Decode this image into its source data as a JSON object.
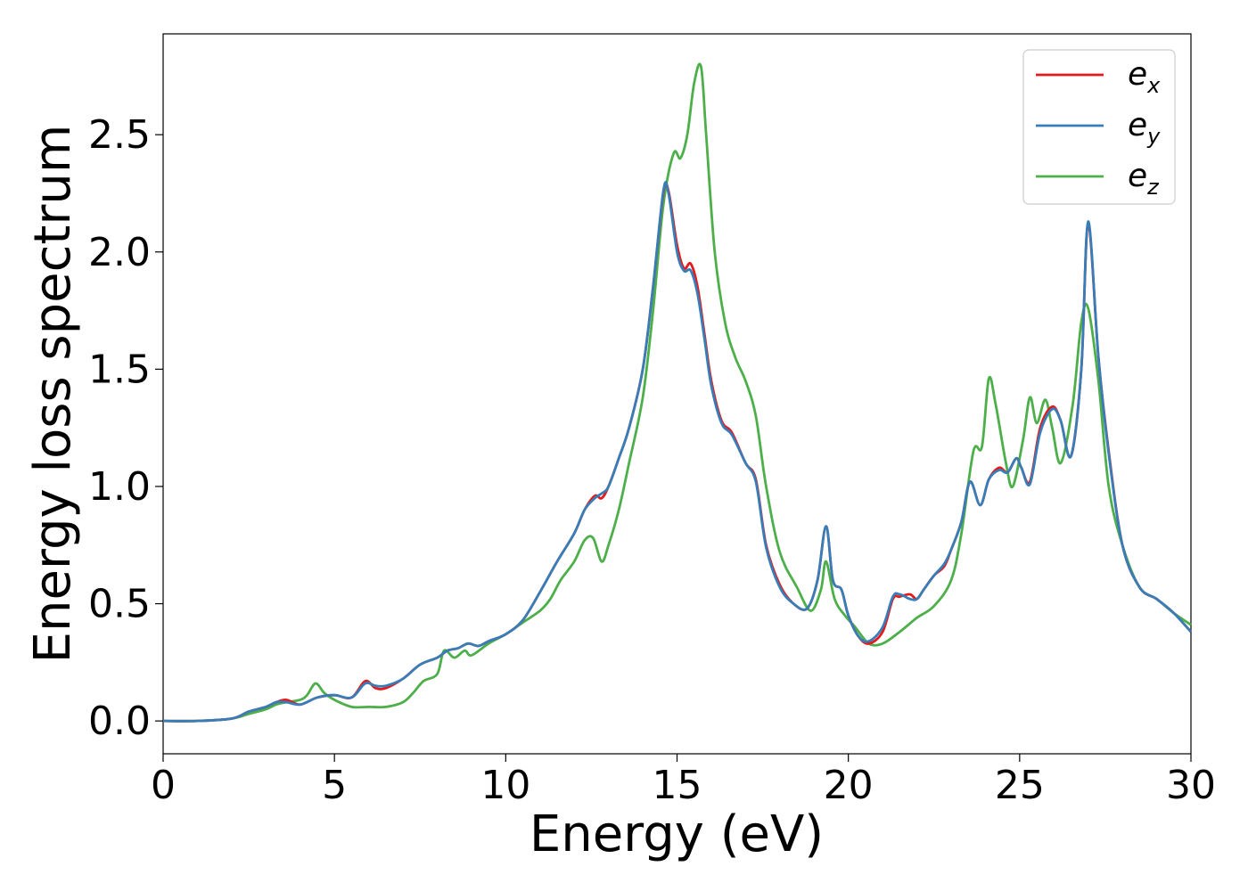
{
  "chart_data": {
    "type": "line",
    "xlabel": "Energy (eV)",
    "ylabel": "Energy loss spectrum",
    "xlim": [
      0,
      30
    ],
    "ylim": [
      -0.14,
      2.93
    ],
    "xticks": [
      0,
      5,
      10,
      15,
      20,
      25,
      30
    ],
    "xtick_labels": [
      "0",
      "5",
      "10",
      "15",
      "20",
      "25",
      "30"
    ],
    "yticks": [
      0.0,
      0.5,
      1.0,
      1.5,
      2.0,
      2.5
    ],
    "ytick_labels": [
      "0.0",
      "0.5",
      "1.0",
      "1.5",
      "2.0",
      "2.5"
    ],
    "grid": false,
    "legend_position": "top-right",
    "series": [
      {
        "name": "e",
        "subscript": "x",
        "color": "#e41a1c",
        "x": [
          0,
          1,
          2,
          2.5,
          3,
          3.3,
          3.6,
          4,
          4.5,
          5,
          5.5,
          5.9,
          6.2,
          6.5,
          7,
          7.5,
          8,
          8.3,
          8.6,
          8.9,
          9.2,
          9.5,
          10,
          10.5,
          11,
          11.5,
          12,
          12.3,
          12.6,
          12.8,
          13,
          13.3,
          13.6,
          14,
          14.3,
          14.6,
          14.75,
          15,
          15.2,
          15.4,
          15.6,
          15.8,
          16,
          16.3,
          16.6,
          17,
          17.3,
          17.6,
          18,
          18.4,
          18.8,
          19.1,
          19.35,
          19.55,
          19.8,
          20,
          20.3,
          20.6,
          21,
          21.3,
          21.5,
          21.8,
          22,
          22.2,
          22.5,
          22.8,
          23,
          23.3,
          23.55,
          23.85,
          24.1,
          24.4,
          24.65,
          24.9,
          25.05,
          25.3,
          25.6,
          25.95,
          26.2,
          26.5,
          26.8,
          27.0,
          27.3,
          27.6,
          28,
          28.5,
          29,
          29.5,
          30
        ],
        "y": [
          0.0,
          0.0,
          0.01,
          0.04,
          0.06,
          0.08,
          0.09,
          0.07,
          0.1,
          0.11,
          0.1,
          0.17,
          0.14,
          0.14,
          0.18,
          0.24,
          0.27,
          0.3,
          0.31,
          0.33,
          0.32,
          0.34,
          0.37,
          0.43,
          0.55,
          0.68,
          0.8,
          0.9,
          0.96,
          0.95,
          1.0,
          1.12,
          1.25,
          1.5,
          1.85,
          2.25,
          2.26,
          2.03,
          1.93,
          1.95,
          1.85,
          1.65,
          1.45,
          1.28,
          1.23,
          1.1,
          1.03,
          0.75,
          0.58,
          0.5,
          0.48,
          0.6,
          0.83,
          0.6,
          0.56,
          0.45,
          0.36,
          0.33,
          0.38,
          0.52,
          0.53,
          0.54,
          0.52,
          0.56,
          0.62,
          0.66,
          0.73,
          0.85,
          1.02,
          0.92,
          1.03,
          1.08,
          1.06,
          1.12,
          1.08,
          1.02,
          1.25,
          1.34,
          1.28,
          1.13,
          1.5,
          2.12,
          1.55,
          1.15,
          0.75,
          0.57,
          0.52,
          0.46,
          0.38
        ]
      },
      {
        "name": "e",
        "subscript": "y",
        "color": "#377eb8",
        "x": [
          0,
          1,
          2,
          2.5,
          3,
          3.3,
          3.6,
          4,
          4.5,
          5,
          5.5,
          5.9,
          6.2,
          6.5,
          7,
          7.5,
          8,
          8.3,
          8.6,
          8.9,
          9.2,
          9.5,
          10,
          10.5,
          11,
          11.5,
          12,
          12.3,
          12.6,
          12.8,
          13,
          13.3,
          13.6,
          14,
          14.3,
          14.6,
          14.75,
          15,
          15.2,
          15.4,
          15.6,
          15.8,
          16,
          16.3,
          16.6,
          17,
          17.3,
          17.6,
          18,
          18.4,
          18.8,
          19.1,
          19.35,
          19.55,
          19.8,
          20,
          20.3,
          20.6,
          21,
          21.3,
          21.5,
          21.8,
          22,
          22.2,
          22.5,
          22.8,
          23,
          23.3,
          23.55,
          23.85,
          24.1,
          24.4,
          24.65,
          24.9,
          25.05,
          25.3,
          25.6,
          25.95,
          26.2,
          26.5,
          26.8,
          27.0,
          27.3,
          27.6,
          28,
          28.5,
          29,
          29.5,
          30
        ],
        "y": [
          0.0,
          0.0,
          0.01,
          0.04,
          0.06,
          0.08,
          0.08,
          0.07,
          0.1,
          0.11,
          0.1,
          0.16,
          0.15,
          0.15,
          0.18,
          0.24,
          0.27,
          0.3,
          0.31,
          0.33,
          0.32,
          0.34,
          0.37,
          0.43,
          0.55,
          0.68,
          0.8,
          0.9,
          0.95,
          0.97,
          1.0,
          1.12,
          1.25,
          1.5,
          1.85,
          2.26,
          2.25,
          2.0,
          1.92,
          1.92,
          1.82,
          1.63,
          1.43,
          1.27,
          1.22,
          1.1,
          1.02,
          0.74,
          0.57,
          0.5,
          0.48,
          0.6,
          0.83,
          0.6,
          0.56,
          0.45,
          0.36,
          0.34,
          0.4,
          0.53,
          0.54,
          0.52,
          0.52,
          0.56,
          0.62,
          0.67,
          0.73,
          0.85,
          1.02,
          0.92,
          1.03,
          1.07,
          1.06,
          1.12,
          1.08,
          1.01,
          1.23,
          1.33,
          1.28,
          1.13,
          1.5,
          2.13,
          1.55,
          1.14,
          0.75,
          0.57,
          0.52,
          0.46,
          0.38
        ]
      },
      {
        "name": "e",
        "subscript": "z",
        "color": "#4daf4a",
        "x": [
          0,
          1,
          2,
          2.5,
          3,
          3.3,
          3.6,
          4,
          4.2,
          4.45,
          4.7,
          5,
          5.5,
          6,
          6.5,
          7,
          7.3,
          7.6,
          8,
          8.2,
          8.5,
          8.8,
          9,
          9.5,
          10,
          10.5,
          11,
          11.3,
          11.6,
          12,
          12.3,
          12.55,
          12.8,
          13,
          13.3,
          13.6,
          14,
          14.3,
          14.6,
          14.9,
          15.1,
          15.3,
          15.5,
          15.7,
          15.85,
          16.1,
          16.4,
          16.7,
          17,
          17.3,
          17.6,
          18,
          18.5,
          18.9,
          19.2,
          19.35,
          19.6,
          19.9,
          20.2,
          20.6,
          21,
          21.5,
          22,
          22.5,
          23,
          23.3,
          23.65,
          23.9,
          24.1,
          24.3,
          24.6,
          24.8,
          25.1,
          25.3,
          25.5,
          25.75,
          25.95,
          26.2,
          26.55,
          26.8,
          27.0,
          27.3,
          27.6,
          28,
          28.5,
          29,
          29.5,
          30
        ],
        "y": [
          0.0,
          0.0,
          0.01,
          0.03,
          0.05,
          0.07,
          0.08,
          0.09,
          0.11,
          0.16,
          0.12,
          0.09,
          0.06,
          0.06,
          0.06,
          0.08,
          0.12,
          0.17,
          0.2,
          0.3,
          0.27,
          0.3,
          0.28,
          0.33,
          0.37,
          0.42,
          0.47,
          0.52,
          0.6,
          0.68,
          0.77,
          0.78,
          0.68,
          0.75,
          0.9,
          1.1,
          1.38,
          1.75,
          2.2,
          2.42,
          2.4,
          2.5,
          2.72,
          2.79,
          2.5,
          2.0,
          1.7,
          1.55,
          1.45,
          1.3,
          1.0,
          0.72,
          0.57,
          0.47,
          0.56,
          0.68,
          0.52,
          0.45,
          0.4,
          0.33,
          0.33,
          0.38,
          0.44,
          0.49,
          0.6,
          0.8,
          1.15,
          1.17,
          1.46,
          1.35,
          1.1,
          1.0,
          1.2,
          1.38,
          1.27,
          1.37,
          1.25,
          1.1,
          1.35,
          1.7,
          1.76,
          1.45,
          1.0,
          0.75,
          0.57,
          0.52,
          0.46,
          0.41
        ]
      }
    ]
  }
}
